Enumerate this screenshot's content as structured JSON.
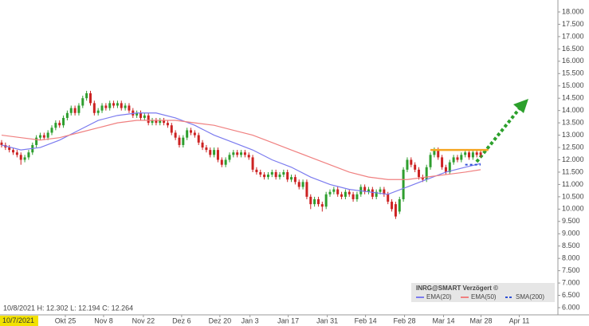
{
  "chart_data": {
    "type": "candlestick",
    "header": "INRG@SMART Verzögert ©",
    "info": "10/8/2021 H: 12.302 L: 12.194 C: 12.264",
    "cursor_date": "10/7/2021",
    "up_color": "#2e9e2e",
    "down_color": "#cc2222",
    "ylim": [
      6,
      18
    ],
    "yticks": [
      {
        "value": 6,
        "label": "6.000"
      },
      {
        "value": 6.5,
        "label": "6.500"
      },
      {
        "value": 7,
        "label": "7.000"
      },
      {
        "value": 7.5,
        "label": "7.500"
      },
      {
        "value": 8,
        "label": "8.000"
      },
      {
        "value": 8.5,
        "label": "8.500"
      },
      {
        "value": 9,
        "label": "9.000"
      },
      {
        "value": 9.5,
        "label": "9.500"
      },
      {
        "value": 10,
        "label": "10.000"
      },
      {
        "value": 10.5,
        "label": "10.500"
      },
      {
        "value": 11,
        "label": "11.000"
      },
      {
        "value": 11.5,
        "label": "11.500"
      },
      {
        "value": 12,
        "label": "12.000"
      },
      {
        "value": 12.5,
        "label": "12.500"
      },
      {
        "value": 13,
        "label": "13.000"
      },
      {
        "value": 13.5,
        "label": "13.500"
      },
      {
        "value": 14,
        "label": "14.000"
      },
      {
        "value": 14.5,
        "label": "14.500"
      },
      {
        "value": 15,
        "label": "15.000"
      },
      {
        "value": 15.5,
        "label": "15.500"
      },
      {
        "value": 16,
        "label": "16.000"
      },
      {
        "value": 16.5,
        "label": "16.500"
      },
      {
        "value": 17,
        "label": "17.000"
      },
      {
        "value": 17.5,
        "label": "17.500"
      },
      {
        "value": 18,
        "label": "18.000"
      }
    ],
    "xlim": [
      0,
      144
    ],
    "xticks": [
      {
        "value": 16.5,
        "label": "Okt 25"
      },
      {
        "value": 26.4,
        "label": "Nov 8"
      },
      {
        "value": 36.7,
        "label": "Nov 22"
      },
      {
        "value": 46.6,
        "label": "Dez 6"
      },
      {
        "value": 56.5,
        "label": "Dez 20"
      },
      {
        "value": 64.3,
        "label": "Jan 3"
      },
      {
        "value": 74.2,
        "label": "Jan 17"
      },
      {
        "value": 84.3,
        "label": "Jan 31"
      },
      {
        "value": 94.2,
        "label": "Feb 14"
      },
      {
        "value": 104.3,
        "label": "Feb 28"
      },
      {
        "value": 114.4,
        "label": "Mar 14"
      },
      {
        "value": 124.1,
        "label": "Mar 28"
      },
      {
        "value": 134,
        "label": "Apr 11"
      }
    ],
    "ohlc": [
      [
        12.7,
        12.8,
        12.5,
        12.6
      ],
      [
        12.6,
        12.7,
        12.4,
        12.5
      ],
      [
        12.5,
        12.6,
        12.3,
        12.4
      ],
      [
        12.4,
        12.5,
        12.2,
        12.3
      ],
      [
        12.3,
        12.4,
        12.1,
        12.2
      ],
      [
        12.2,
        12.3,
        11.8,
        12.0
      ],
      [
        12.0,
        12.2,
        11.9,
        12.1
      ],
      [
        12.1,
        12.4,
        12.0,
        12.3
      ],
      [
        12.3,
        12.7,
        12.2,
        12.6
      ],
      [
        12.6,
        13.0,
        12.5,
        12.9
      ],
      [
        12.9,
        13.1,
        12.8,
        13.0
      ],
      [
        13.0,
        13.1,
        12.8,
        12.9
      ],
      [
        12.9,
        13.2,
        12.8,
        13.1
      ],
      [
        13.1,
        13.4,
        13.0,
        13.3
      ],
      [
        13.3,
        13.6,
        13.2,
        13.5
      ],
      [
        13.5,
        13.6,
        13.3,
        13.4
      ],
      [
        13.4,
        13.8,
        13.3,
        13.7
      ],
      [
        13.7,
        14.0,
        13.6,
        13.9
      ],
      [
        13.9,
        14.2,
        13.8,
        14.1
      ],
      [
        14.1,
        14.2,
        13.8,
        13.9
      ],
      [
        13.9,
        14.3,
        13.8,
        14.2
      ],
      [
        14.2,
        14.6,
        14.1,
        14.5
      ],
      [
        14.5,
        14.8,
        14.4,
        14.7
      ],
      [
        14.7,
        14.8,
        14.2,
        14.3
      ],
      [
        14.3,
        14.4,
        13.8,
        13.9
      ],
      [
        13.9,
        14.1,
        13.8,
        14.0
      ],
      [
        14.0,
        14.3,
        13.9,
        14.2
      ],
      [
        14.2,
        14.3,
        14.0,
        14.1
      ],
      [
        14.1,
        14.4,
        14.0,
        14.3
      ],
      [
        14.3,
        14.4,
        14.1,
        14.2
      ],
      [
        14.2,
        14.4,
        14.1,
        14.3
      ],
      [
        14.3,
        14.4,
        14.0,
        14.1
      ],
      [
        14.1,
        14.3,
        14.0,
        14.2
      ],
      [
        14.2,
        14.3,
        13.9,
        14.0
      ],
      [
        14.0,
        14.1,
        13.7,
        13.8
      ],
      [
        13.8,
        14.0,
        13.7,
        13.9
      ],
      [
        13.9,
        14.0,
        13.6,
        13.7
      ],
      [
        13.7,
        13.9,
        13.6,
        13.8
      ],
      [
        13.8,
        13.9,
        13.4,
        13.5
      ],
      [
        13.5,
        13.7,
        13.4,
        13.6
      ],
      [
        13.6,
        13.7,
        13.4,
        13.5
      ],
      [
        13.5,
        13.7,
        13.4,
        13.6
      ],
      [
        13.6,
        13.7,
        13.4,
        13.5
      ],
      [
        13.5,
        13.6,
        13.3,
        13.4
      ],
      [
        13.4,
        13.5,
        13.0,
        13.1
      ],
      [
        13.1,
        13.2,
        12.8,
        12.9
      ],
      [
        12.9,
        13.0,
        12.5,
        12.6
      ],
      [
        12.6,
        13.0,
        12.5,
        12.9
      ],
      [
        12.9,
        13.3,
        12.8,
        13.2
      ],
      [
        13.2,
        13.3,
        13.0,
        13.1
      ],
      [
        13.1,
        13.2,
        12.9,
        13.0
      ],
      [
        13.0,
        13.1,
        12.6,
        12.7
      ],
      [
        12.7,
        12.8,
        12.4,
        12.5
      ],
      [
        12.5,
        12.6,
        12.3,
        12.4
      ],
      [
        12.4,
        12.5,
        12.1,
        12.2
      ],
      [
        12.2,
        12.5,
        12.1,
        12.4
      ],
      [
        12.4,
        12.5,
        11.9,
        12.0
      ],
      [
        12.0,
        12.1,
        11.7,
        11.8
      ],
      [
        11.8,
        12.1,
        11.7,
        12.0
      ],
      [
        12.0,
        12.3,
        11.9,
        12.2
      ],
      [
        12.2,
        12.4,
        12.1,
        12.3
      ],
      [
        12.3,
        12.4,
        12.1,
        12.2
      ],
      [
        12.2,
        12.4,
        12.1,
        12.3
      ],
      [
        12.3,
        12.4,
        12.1,
        12.2
      ],
      [
        12.2,
        12.3,
        12.0,
        12.1
      ],
      [
        12.1,
        12.2,
        11.5,
        11.6
      ],
      [
        11.6,
        11.7,
        11.4,
        11.5
      ],
      [
        11.5,
        11.6,
        11.3,
        11.4
      ],
      [
        11.4,
        11.5,
        11.2,
        11.3
      ],
      [
        11.3,
        11.5,
        11.2,
        11.4
      ],
      [
        11.4,
        11.6,
        11.3,
        11.5
      ],
      [
        11.5,
        11.6,
        11.2,
        11.3
      ],
      [
        11.3,
        11.5,
        11.2,
        11.4
      ],
      [
        11.4,
        11.6,
        11.3,
        11.5
      ],
      [
        11.5,
        11.6,
        11.1,
        11.2
      ],
      [
        11.2,
        11.4,
        11.1,
        11.3
      ],
      [
        11.3,
        11.4,
        11.0,
        11.1
      ],
      [
        11.1,
        11.2,
        10.8,
        10.9
      ],
      [
        10.9,
        11.2,
        10.8,
        11.1
      ],
      [
        11.1,
        11.2,
        10.4,
        10.5
      ],
      [
        10.5,
        10.6,
        10.0,
        10.2
      ],
      [
        10.2,
        10.5,
        10.1,
        10.4
      ],
      [
        10.4,
        10.5,
        10.1,
        10.2
      ],
      [
        10.2,
        10.3,
        9.9,
        10.1
      ],
      [
        10.1,
        10.7,
        10.0,
        10.6
      ],
      [
        10.6,
        10.8,
        10.5,
        10.7
      ],
      [
        10.7,
        10.9,
        10.6,
        10.8
      ],
      [
        10.8,
        10.9,
        10.5,
        10.6
      ],
      [
        10.6,
        10.7,
        10.4,
        10.5
      ],
      [
        10.5,
        10.8,
        10.4,
        10.7
      ],
      [
        10.7,
        10.8,
        10.5,
        10.6
      ],
      [
        10.6,
        10.7,
        10.3,
        10.4
      ],
      [
        10.4,
        10.7,
        10.3,
        10.6
      ],
      [
        10.6,
        11.0,
        10.5,
        10.9
      ],
      [
        10.9,
        11.0,
        10.6,
        10.7
      ],
      [
        10.7,
        10.9,
        10.6,
        10.8
      ],
      [
        10.8,
        10.9,
        10.4,
        10.5
      ],
      [
        10.5,
        10.8,
        10.4,
        10.7
      ],
      [
        10.7,
        10.9,
        10.6,
        10.8
      ],
      [
        10.8,
        10.9,
        10.5,
        10.6
      ],
      [
        10.6,
        10.7,
        10.2,
        10.3
      ],
      [
        10.3,
        10.4,
        9.9,
        10.0
      ],
      [
        10.2,
        10.3,
        9.6,
        9.7
      ],
      [
        9.9,
        10.5,
        9.8,
        10.4
      ],
      [
        10.4,
        11.7,
        10.3,
        11.6
      ],
      [
        11.6,
        12.1,
        11.5,
        12.0
      ],
      [
        12.0,
        12.1,
        11.7,
        11.8
      ],
      [
        11.8,
        11.9,
        11.5,
        11.6
      ],
      [
        11.6,
        11.7,
        11.2,
        11.3
      ],
      [
        11.3,
        11.4,
        11.1,
        11.2
      ],
      [
        11.2,
        11.8,
        11.1,
        11.7
      ],
      [
        11.7,
        12.3,
        11.6,
        12.2
      ],
      [
        12.2,
        12.5,
        12.1,
        12.4
      ],
      [
        12.4,
        12.5,
        12.0,
        12.1
      ],
      [
        12.1,
        12.2,
        11.6,
        11.7
      ],
      [
        11.7,
        11.8,
        11.4,
        11.5
      ],
      [
        11.5,
        12.0,
        11.4,
        11.9
      ],
      [
        11.9,
        12.2,
        11.8,
        12.1
      ],
      [
        12.1,
        12.2,
        11.9,
        12.0
      ],
      [
        12.0,
        12.3,
        11.9,
        12.2
      ],
      [
        12.2,
        12.4,
        12.1,
        12.3
      ],
      [
        12.3,
        12.4,
        12.0,
        12.1
      ],
      [
        12.1,
        12.4,
        12.0,
        12.3
      ],
      [
        12.3,
        12.4,
        12.1,
        12.2
      ],
      [
        12.3,
        12.4,
        12.1,
        12.2
      ]
    ],
    "line_x": [
      0,
      5,
      10,
      15,
      20,
      25,
      30,
      35,
      40,
      45,
      50,
      55,
      60,
      65,
      70,
      75,
      80,
      85,
      90,
      95,
      100,
      105,
      110,
      115,
      120,
      124
    ],
    "lines": [
      {
        "name": "EMA(20)",
        "color": "#7b7bef",
        "dashed": false,
        "values": [
          12.6,
          12.4,
          12.5,
          12.8,
          13.2,
          13.6,
          13.8,
          13.9,
          13.9,
          13.7,
          13.4,
          13.0,
          12.7,
          12.4,
          12.0,
          11.7,
          11.3,
          11.0,
          10.8,
          10.7,
          10.6,
          10.9,
          11.2,
          11.5,
          11.7,
          11.85
        ]
      },
      {
        "name": "EMA(50)",
        "color": "#f08080",
        "dashed": false,
        "values": [
          13.0,
          12.9,
          12.8,
          12.9,
          13.1,
          13.3,
          13.5,
          13.6,
          13.6,
          13.6,
          13.5,
          13.4,
          13.2,
          13.0,
          12.7,
          12.4,
          12.1,
          11.8,
          11.5,
          11.3,
          11.2,
          11.2,
          11.3,
          11.4,
          11.5,
          11.6
        ]
      },
      {
        "name": "SMA(200)",
        "color": "#2d4fd6",
        "dashed": true,
        "values": [
          null,
          null,
          null,
          null,
          null,
          null,
          null,
          null,
          null,
          null,
          null,
          null,
          null,
          null,
          null,
          null,
          null,
          null,
          null,
          null,
          null,
          null,
          null,
          null,
          11.8,
          11.8
        ]
      }
    ],
    "resistance": {
      "value": 12.4,
      "x": [
        111,
        126
      ],
      "color": "#f5a623"
    }
  }
}
